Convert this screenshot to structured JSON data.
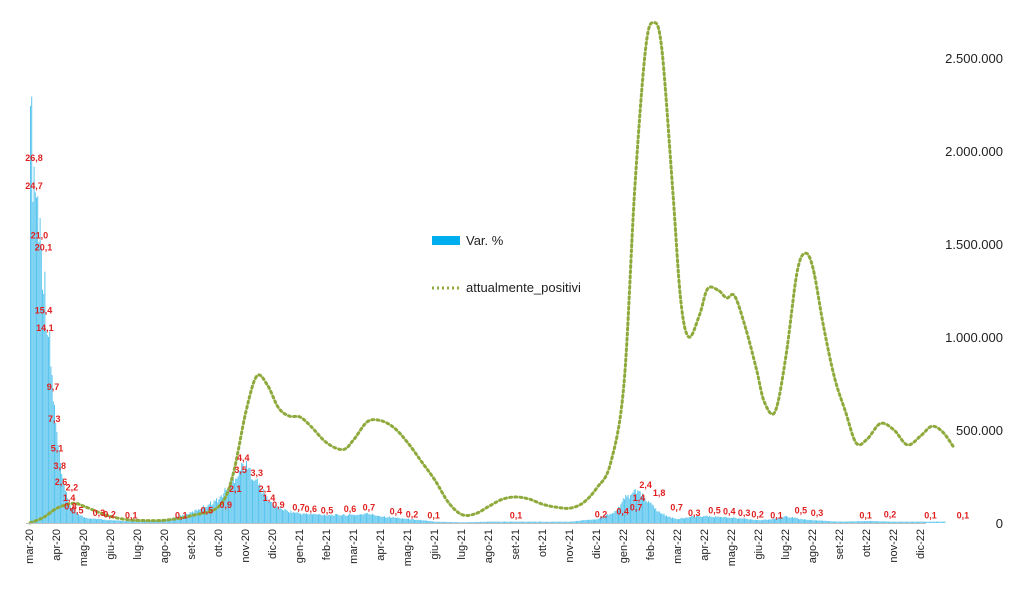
{
  "chart_data": {
    "type": "bar",
    "x_categories": [
      "mar-20",
      "apr-20",
      "mag-20",
      "giu-20",
      "lug-20",
      "ago-20",
      "set-20",
      "ott-20",
      "nov-20",
      "dic-20",
      "gen-21",
      "feb-21",
      "mar-21",
      "apr-21",
      "mag-21",
      "giu-21",
      "lug-21",
      "ago-21",
      "set-21",
      "ott-21",
      "nov-21",
      "dic-21",
      "gen-22",
      "feb-22",
      "mar-22",
      "apr-22",
      "mag-22",
      "giu-22",
      "lug-22",
      "ago-22",
      "set-22",
      "ott-22",
      "nov-22",
      "dic-22"
    ],
    "y2_axis": {
      "ticks": [
        "0",
        "500.000",
        "1.000.000",
        "1.500.000",
        "2.000.000",
        "2.500.000"
      ],
      "tick_values": [
        0,
        500000,
        1000000,
        1500000,
        2000000,
        2500000
      ],
      "min": 0,
      "max": 2500000
    },
    "legend": {
      "bar_label": "Var. %",
      "line_label": "attualmente_positivi"
    },
    "colors": {
      "bars": "#5bc6ee",
      "line": "#8faa3c",
      "labels": "#e02020"
    },
    "bar_profile": [
      {
        "t": 0.0,
        "v": 28.0
      },
      {
        "t": 0.15,
        "v": 26.0
      },
      {
        "t": 0.35,
        "v": 22.0
      },
      {
        "t": 0.55,
        "v": 17.0
      },
      {
        "t": 0.75,
        "v": 12.0
      },
      {
        "t": 0.9,
        "v": 8.0
      },
      {
        "t": 1.05,
        "v": 5.2
      },
      {
        "t": 1.2,
        "v": 3.0
      },
      {
        "t": 1.4,
        "v": 1.6
      },
      {
        "t": 1.6,
        "v": 0.9
      },
      {
        "t": 2.0,
        "v": 0.4
      },
      {
        "t": 3.0,
        "v": 0.2
      },
      {
        "t": 4.0,
        "v": 0.1
      },
      {
        "t": 5.0,
        "v": 0.2
      },
      {
        "t": 6.0,
        "v": 0.8
      },
      {
        "t": 7.0,
        "v": 1.8
      },
      {
        "t": 7.5,
        "v": 3.2
      },
      {
        "t": 7.9,
        "v": 4.4
      },
      {
        "t": 8.3,
        "v": 3.4
      },
      {
        "t": 8.7,
        "v": 2.0
      },
      {
        "t": 9.0,
        "v": 1.3
      },
      {
        "t": 9.5,
        "v": 0.9
      },
      {
        "t": 10.0,
        "v": 0.7
      },
      {
        "t": 11.0,
        "v": 0.6
      },
      {
        "t": 12.0,
        "v": 0.6
      },
      {
        "t": 12.5,
        "v": 0.7
      },
      {
        "t": 13.0,
        "v": 0.5
      },
      {
        "t": 14.0,
        "v": 0.3
      },
      {
        "t": 15.0,
        "v": 0.1
      },
      {
        "t": 16.0,
        "v": 0.05
      },
      {
        "t": 17.0,
        "v": 0.1
      },
      {
        "t": 18.0,
        "v": 0.1
      },
      {
        "t": 19.0,
        "v": 0.1
      },
      {
        "t": 20.0,
        "v": 0.1
      },
      {
        "t": 21.0,
        "v": 0.3
      },
      {
        "t": 21.7,
        "v": 0.9
      },
      {
        "t": 22.0,
        "v": 1.8
      },
      {
        "t": 22.4,
        "v": 2.4
      },
      {
        "t": 22.8,
        "v": 1.8
      },
      {
        "t": 23.2,
        "v": 0.9
      },
      {
        "t": 23.7,
        "v": 0.4
      },
      {
        "t": 24.0,
        "v": 0.3
      },
      {
        "t": 24.6,
        "v": 0.5
      },
      {
        "t": 25.0,
        "v": 0.5
      },
      {
        "t": 26.0,
        "v": 0.4
      },
      {
        "t": 27.0,
        "v": 0.2
      },
      {
        "t": 27.6,
        "v": 0.3
      },
      {
        "t": 28.0,
        "v": 0.5
      },
      {
        "t": 28.5,
        "v": 0.3
      },
      {
        "t": 29.0,
        "v": 0.2
      },
      {
        "t": 30.0,
        "v": 0.1
      },
      {
        "t": 31.0,
        "v": 0.15
      },
      {
        "t": 32.0,
        "v": 0.1
      },
      {
        "t": 33.0,
        "v": 0.1
      },
      {
        "t": 33.9,
        "v": 0.1
      }
    ],
    "bar_peak": {
      "t": 0.02,
      "v": 31.5
    },
    "line_points": [
      {
        "t": 0.0,
        "v": 0
      },
      {
        "t": 0.5,
        "v": 30000
      },
      {
        "t": 1.0,
        "v": 80000
      },
      {
        "t": 1.6,
        "v": 106000
      },
      {
        "t": 2.0,
        "v": 90000
      },
      {
        "t": 2.5,
        "v": 60000
      },
      {
        "t": 3.0,
        "v": 35000
      },
      {
        "t": 3.5,
        "v": 20000
      },
      {
        "t": 4.0,
        "v": 14000
      },
      {
        "t": 5.0,
        "v": 15000
      },
      {
        "t": 6.0,
        "v": 40000
      },
      {
        "t": 7.0,
        "v": 90000
      },
      {
        "t": 7.5,
        "v": 250000
      },
      {
        "t": 8.0,
        "v": 600000
      },
      {
        "t": 8.4,
        "v": 790000
      },
      {
        "t": 8.8,
        "v": 740000
      },
      {
        "t": 9.2,
        "v": 620000
      },
      {
        "t": 9.6,
        "v": 575000
      },
      {
        "t": 10.0,
        "v": 570000
      },
      {
        "t": 10.4,
        "v": 520000
      },
      {
        "t": 11.0,
        "v": 430000
      },
      {
        "t": 11.6,
        "v": 395000
      },
      {
        "t": 12.0,
        "v": 450000
      },
      {
        "t": 12.5,
        "v": 545000
      },
      {
        "t": 13.0,
        "v": 550000
      },
      {
        "t": 13.5,
        "v": 510000
      },
      {
        "t": 14.0,
        "v": 430000
      },
      {
        "t": 14.5,
        "v": 330000
      },
      {
        "t": 15.0,
        "v": 230000
      },
      {
        "t": 15.5,
        "v": 110000
      },
      {
        "t": 16.0,
        "v": 45000
      },
      {
        "t": 16.5,
        "v": 50000
      },
      {
        "t": 17.0,
        "v": 90000
      },
      {
        "t": 17.5,
        "v": 128000
      },
      {
        "t": 18.0,
        "v": 140000
      },
      {
        "t": 18.5,
        "v": 128000
      },
      {
        "t": 19.0,
        "v": 100000
      },
      {
        "t": 19.5,
        "v": 85000
      },
      {
        "t": 20.0,
        "v": 80000
      },
      {
        "t": 20.5,
        "v": 110000
      },
      {
        "t": 21.0,
        "v": 190000
      },
      {
        "t": 21.5,
        "v": 320000
      },
      {
        "t": 22.0,
        "v": 750000
      },
      {
        "t": 22.4,
        "v": 1800000
      },
      {
        "t": 22.8,
        "v": 2550000
      },
      {
        "t": 23.1,
        "v": 2690000
      },
      {
        "t": 23.4,
        "v": 2550000
      },
      {
        "t": 23.8,
        "v": 1800000
      },
      {
        "t": 24.1,
        "v": 1200000
      },
      {
        "t": 24.4,
        "v": 1000000
      },
      {
        "t": 24.8,
        "v": 1120000
      },
      {
        "t": 25.1,
        "v": 1260000
      },
      {
        "t": 25.5,
        "v": 1250000
      },
      {
        "t": 25.8,
        "v": 1210000
      },
      {
        "t": 26.1,
        "v": 1220000
      },
      {
        "t": 26.5,
        "v": 1050000
      },
      {
        "t": 26.9,
        "v": 830000
      },
      {
        "t": 27.2,
        "v": 650000
      },
      {
        "t": 27.6,
        "v": 600000
      },
      {
        "t": 28.0,
        "v": 900000
      },
      {
        "t": 28.4,
        "v": 1340000
      },
      {
        "t": 28.7,
        "v": 1450000
      },
      {
        "t": 29.0,
        "v": 1370000
      },
      {
        "t": 29.4,
        "v": 1050000
      },
      {
        "t": 29.8,
        "v": 780000
      },
      {
        "t": 30.2,
        "v": 600000
      },
      {
        "t": 30.6,
        "v": 430000
      },
      {
        "t": 31.0,
        "v": 450000
      },
      {
        "t": 31.5,
        "v": 535000
      },
      {
        "t": 32.0,
        "v": 500000
      },
      {
        "t": 32.5,
        "v": 420000
      },
      {
        "t": 33.0,
        "v": 470000
      },
      {
        "t": 33.4,
        "v": 520000
      },
      {
        "t": 33.8,
        "v": 490000
      },
      {
        "t": 34.2,
        "v": 410000
      }
    ],
    "data_labels": [
      {
        "t": 0.15,
        "v": 26.8,
        "text": "26,8"
      },
      {
        "t": 0.15,
        "v": 24.7,
        "text": "24,7"
      },
      {
        "t": 0.35,
        "v": 21.0,
        "text": "21,0"
      },
      {
        "t": 0.5,
        "v": 20.1,
        "text": "20,1"
      },
      {
        "t": 0.5,
        "v": 15.4,
        "text": "15,4"
      },
      {
        "t": 0.55,
        "v": 14.1,
        "text": "14,1"
      },
      {
        "t": 0.85,
        "v": 9.7,
        "text": "9,7"
      },
      {
        "t": 0.9,
        "v": 7.3,
        "text": "7,3"
      },
      {
        "t": 1.0,
        "v": 5.1,
        "text": "5,1"
      },
      {
        "t": 1.1,
        "v": 3.8,
        "text": "3,8"
      },
      {
        "t": 1.15,
        "v": 2.6,
        "text": "2,6"
      },
      {
        "t": 1.55,
        "v": 2.2,
        "text": "2,2"
      },
      {
        "t": 1.45,
        "v": 1.4,
        "text": "1,4"
      },
      {
        "t": 1.5,
        "v": 0.8,
        "text": "0,8"
      },
      {
        "t": 1.75,
        "v": 0.5,
        "text": "0,5"
      },
      {
        "t": 2.55,
        "v": 0.3,
        "text": "0,3"
      },
      {
        "t": 2.95,
        "v": 0.2,
        "text": "0,2"
      },
      {
        "t": 3.75,
        "v": 0.1,
        "text": "0,1"
      },
      {
        "t": 5.6,
        "v": 0.1,
        "text": "0,1"
      },
      {
        "t": 6.55,
        "v": 0.5,
        "text": "0,5"
      },
      {
        "t": 7.25,
        "v": 0.9,
        "text": "0,9"
      },
      {
        "t": 7.6,
        "v": 2.1,
        "text": "2,1"
      },
      {
        "t": 7.8,
        "v": 3.5,
        "text": "3,5"
      },
      {
        "t": 7.9,
        "v": 4.4,
        "text": "4,4"
      },
      {
        "t": 8.4,
        "v": 3.3,
        "text": "3,3"
      },
      {
        "t": 8.7,
        "v": 2.1,
        "text": "2,1"
      },
      {
        "t": 8.85,
        "v": 1.4,
        "text": "1,4"
      },
      {
        "t": 9.2,
        "v": 0.9,
        "text": "0,9"
      },
      {
        "t": 9.95,
        "v": 0.7,
        "text": "0,7"
      },
      {
        "t": 10.4,
        "v": 0.6,
        "text": "0,6"
      },
      {
        "t": 11.0,
        "v": 0.5,
        "text": "0,5"
      },
      {
        "t": 11.85,
        "v": 0.6,
        "text": "0,6"
      },
      {
        "t": 12.55,
        "v": 0.7,
        "text": "0,7"
      },
      {
        "t": 13.55,
        "v": 0.4,
        "text": "0,4"
      },
      {
        "t": 14.15,
        "v": 0.2,
        "text": "0,2"
      },
      {
        "t": 14.95,
        "v": 0.1,
        "text": "0,1"
      },
      {
        "t": 18.0,
        "v": 0.1,
        "text": "0,1"
      },
      {
        "t": 21.15,
        "v": 0.2,
        "text": "0,2"
      },
      {
        "t": 21.95,
        "v": 0.4,
        "text": "0,4"
      },
      {
        "t": 22.45,
        "v": 0.7,
        "text": "0,7"
      },
      {
        "t": 22.55,
        "v": 1.4,
        "text": "1,4"
      },
      {
        "t": 22.8,
        "v": 2.4,
        "text": "2,4"
      },
      {
        "t": 23.3,
        "v": 1.8,
        "text": "1,8"
      },
      {
        "t": 23.95,
        "v": 0.7,
        "text": "0,7"
      },
      {
        "t": 24.6,
        "v": 0.3,
        "text": "0,3"
      },
      {
        "t": 25.35,
        "v": 0.5,
        "text": "0,5"
      },
      {
        "t": 25.9,
        "v": 0.4,
        "text": "0,4"
      },
      {
        "t": 26.45,
        "v": 0.3,
        "text": "0,3"
      },
      {
        "t": 26.95,
        "v": 0.2,
        "text": "0,2"
      },
      {
        "t": 27.65,
        "v": 0.1,
        "text": "0,1"
      },
      {
        "t": 28.55,
        "v": 0.5,
        "text": "0,5"
      },
      {
        "t": 29.15,
        "v": 0.3,
        "text": "0,3"
      },
      {
        "t": 30.95,
        "v": 0.1,
        "text": "0,1"
      },
      {
        "t": 31.85,
        "v": 0.2,
        "text": "0,2"
      },
      {
        "t": 33.35,
        "v": 0.1,
        "text": "0,1"
      },
      {
        "t": 34.55,
        "v": 0.1,
        "text": "0,1"
      }
    ],
    "grid": false,
    "legend_position": "center"
  }
}
